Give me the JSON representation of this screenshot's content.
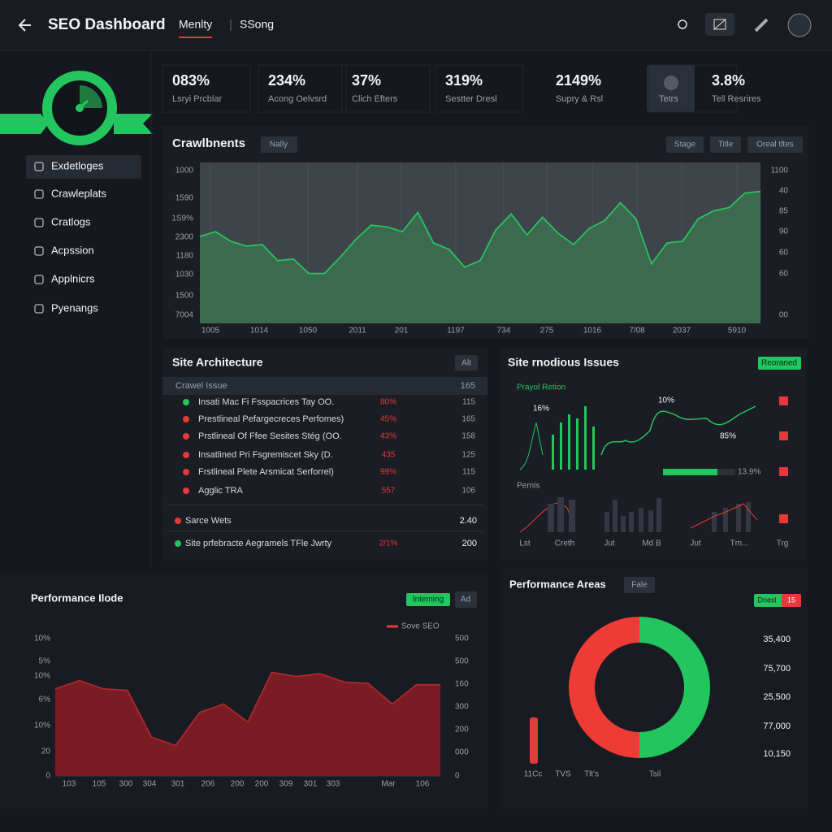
{
  "header": {
    "title": "SEO Dashboard",
    "tabs": [
      "Menlty",
      "SSong"
    ]
  },
  "sidebar": {
    "nav": [
      "Exdetloges",
      "Crawleplats",
      "Cratlogs",
      "Acpssion",
      "Applnicrs",
      "Pyenangs"
    ]
  },
  "kpis": [
    {
      "value": "083%",
      "label": "Lsryi Prcblar"
    },
    {
      "value": "234%",
      "label": "Acong Oelvsrd"
    },
    {
      "value": "37%",
      "label": "Clich Efters"
    },
    {
      "value": "319%",
      "label": "Sestter Dresl"
    },
    {
      "value": "2149%",
      "label": "Supry & Rsl"
    },
    {
      "label": "Tetrs"
    },
    {
      "value": "3.8%",
      "label": "Tell Resrires"
    }
  ],
  "crawl_chart": {
    "title": "Crawlbnents",
    "filter": "Nally",
    "buttons": [
      "Stage",
      "Title",
      "Oreal tltes"
    ],
    "left_labels": [
      "1000",
      "1590",
      "1S9%",
      "2300",
      "1180",
      "1030",
      "1500",
      "7004"
    ],
    "right_labels": [
      "1100",
      "40",
      "85",
      "90",
      "60",
      "60",
      "00"
    ],
    "x_labels": [
      "1005",
      "1014",
      "1050",
      "2011",
      "201",
      "1197",
      "734",
      "275",
      "1016",
      "7/08",
      "2037",
      "5910"
    ],
    "values": [
      54,
      57,
      51,
      48,
      49,
      39,
      40,
      31,
      31,
      41,
      52,
      61,
      60,
      57,
      69,
      50,
      46,
      35,
      39,
      58,
      68,
      55,
      66,
      56,
      49,
      59,
      64,
      75,
      65,
      37,
      50,
      51,
      65,
      70,
      72,
      81,
      82
    ],
    "ylim": [
      0,
      100
    ],
    "color": "#22c55e"
  },
  "site_architecture": {
    "title": "Site Architecture",
    "button": "Alt",
    "header": [
      "Crawel Issue",
      "165"
    ],
    "rows": [
      [
        "Insati Mac Fi Fsspacrices Tay OO.",
        "80%",
        "115"
      ],
      [
        "Prestlineal Pefargecreces Perfomes)",
        "45%",
        "165"
      ],
      [
        "Prstlineal Of Ffee Sesites Stég (OO.",
        "43%",
        "158"
      ],
      [
        "Insatlined Pri Fsgremiscet Sky (D.",
        "435",
        "125"
      ],
      [
        "Frstlineal Plete Arsmicat Serforrel)",
        "99%",
        "115"
      ],
      [
        "Agglic TRA",
        "557",
        "106"
      ]
    ],
    "footer": [
      [
        "Sarce Wets",
        "",
        "2.40"
      ],
      [
        "Site prfebracte Aegramels TFle Jwrty",
        "2/1%",
        "200"
      ]
    ]
  },
  "site_issues": {
    "title": "Site rnodious Issues",
    "badge": "Reoraned",
    "subtitle": "Prayol Retion",
    "annotations": [
      "16%",
      "10%",
      "85%",
      "13.9%"
    ],
    "section": "Pernis",
    "x_labels": [
      "Lst",
      "Creth",
      "Jut",
      "Md B",
      "Jut",
      "Tm...",
      "Trg"
    ]
  },
  "performance_chart": {
    "title": "Performance Ilode",
    "badges": [
      "Inteming",
      "Ad"
    ],
    "legend": "Sove SEO",
    "left_labels": [
      "10%",
      "5%",
      "10%",
      "6%",
      "10%",
      "20",
      "0"
    ],
    "right_labels": [
      "500",
      "500",
      "160",
      "300",
      "200",
      "000",
      "0"
    ],
    "x_labels": [
      "103",
      "105",
      "300",
      "304",
      "301",
      "206",
      "200",
      "200",
      "309",
      "301",
      "303",
      "Mar",
      "106"
    ],
    "values": [
      63,
      69,
      63,
      62,
      28,
      22,
      46,
      52,
      39,
      75,
      72,
      74,
      68,
      67,
      52,
      66,
      66
    ],
    "ylim": [
      0,
      100
    ],
    "color": "#7a1c24"
  },
  "areas_chart": {
    "title": "Performance Areas",
    "badge": "Fale",
    "legend": [
      "Dnesl",
      "15"
    ],
    "values": [
      50,
      50
    ],
    "colors": [
      "#22c55e",
      "#ef3b36"
    ],
    "right_labels": [
      "35,400",
      "75,700",
      "25,500",
      "77,000",
      "10,150"
    ],
    "x_labels": [
      "11Cc",
      "TVS",
      "Tlt's",
      "Tsil"
    ]
  }
}
